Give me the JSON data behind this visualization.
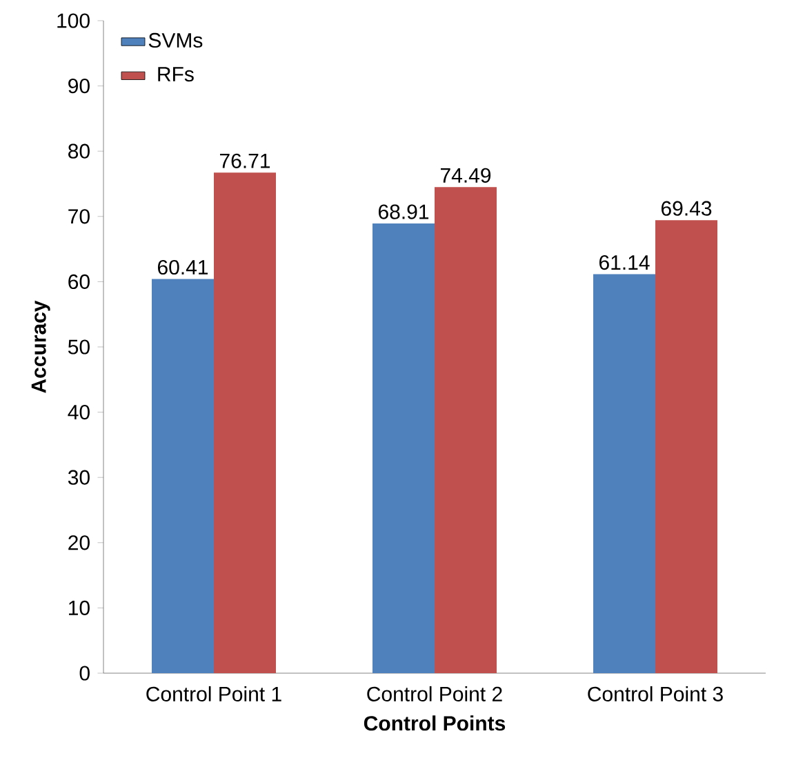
{
  "chart_data": {
    "type": "bar",
    "xlabel": "Control Points",
    "ylabel": "Accuracy",
    "categories": [
      "Control Point 1",
      "Control Point 2",
      "Control Point 3"
    ],
    "series": [
      {
        "name": "SVMs",
        "color": "#4f81bd",
        "values": [
          60.41,
          68.91,
          61.14
        ],
        "value_labels": [
          "60.41",
          "68.91",
          "61.14"
        ]
      },
      {
        "name": "RFs",
        "color": "#c0504d",
        "values": [
          76.71,
          74.49,
          69.43
        ],
        "value_labels": [
          "76.71",
          "74.49",
          "69.43"
        ]
      }
    ],
    "ylim": [
      0,
      100
    ],
    "yticks": [
      0,
      10,
      20,
      30,
      40,
      50,
      60,
      70,
      80,
      90,
      100
    ],
    "grid": false,
    "legend": "top left"
  }
}
